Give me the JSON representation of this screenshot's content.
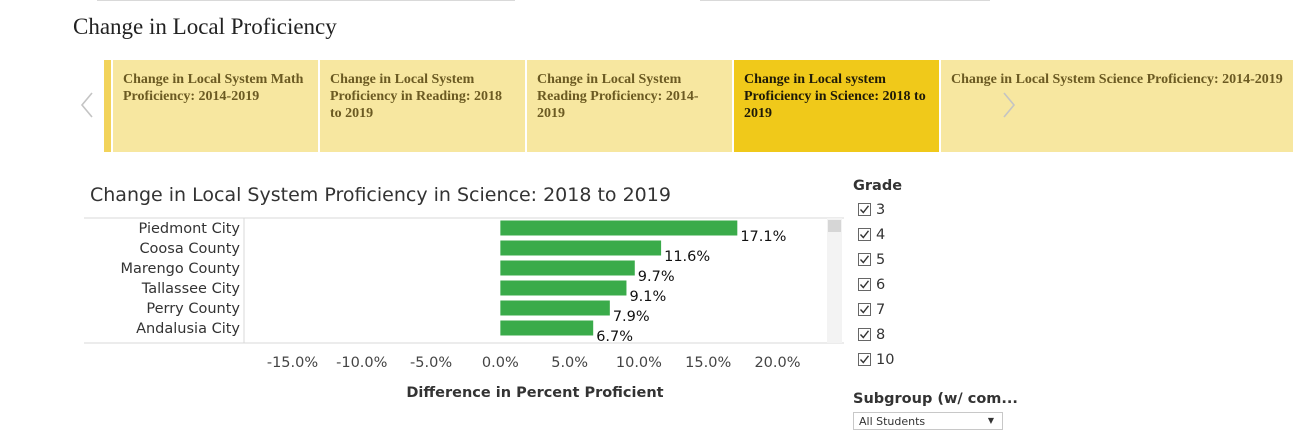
{
  "page": {
    "title": "Change in Local Proficiency"
  },
  "carousel": {
    "tabs": [
      {
        "label": "Change in Local System Math Proficiency: 2014-2019",
        "active": false
      },
      {
        "label": "Change in Local System Proficiency in Reading: 2018 to 2019",
        "active": false
      },
      {
        "label": "Change in Local System Reading Proficiency: 2014-2019",
        "active": false
      },
      {
        "label": "Change in Local system Proficiency in Science: 2018 to 2019",
        "active": true
      },
      {
        "label": "Change in Local System Science Proficiency: 2014-2019",
        "active": false
      }
    ],
    "prev_icon": "chevron-left-icon",
    "next_icon": "chevron-right-icon"
  },
  "chart_data": {
    "type": "bar",
    "orientation": "horizontal",
    "title": "Change in Local System Proficiency in Science: 2018 to 2019",
    "categories": [
      "Piedmont City",
      "Coosa County",
      "Marengo County",
      "Tallassee City",
      "Perry County",
      "Andalusia City"
    ],
    "values": [
      17.1,
      11.6,
      9.7,
      9.1,
      7.9,
      6.7
    ],
    "data_labels": [
      "17.1%",
      "11.6%",
      "9.7%",
      "9.1%",
      "7.9%",
      "6.7%"
    ],
    "xlabel": "Difference in Percent Proficient",
    "ylabel": "",
    "xlim": [
      -18.5,
      23.5
    ],
    "x_ticks": [
      -15,
      -10,
      -5,
      0,
      5,
      10,
      15,
      20
    ],
    "x_tick_labels": [
      "-15.0%",
      "-10.0%",
      "-5.0%",
      "0.0%",
      "5.0%",
      "10.0%",
      "15.0%",
      "20.0%"
    ],
    "bar_color": "#3aab4a",
    "grid": false
  },
  "filters": {
    "grade": {
      "title": "Grade",
      "options": [
        {
          "label": "3",
          "checked": true
        },
        {
          "label": "4",
          "checked": true
        },
        {
          "label": "5",
          "checked": true
        },
        {
          "label": "6",
          "checked": true
        },
        {
          "label": "7",
          "checked": true
        },
        {
          "label": "8",
          "checked": true
        },
        {
          "label": "10",
          "checked": true
        }
      ]
    },
    "subgroup": {
      "title": "Subgroup (w/ com...",
      "selected": "All Students"
    }
  }
}
